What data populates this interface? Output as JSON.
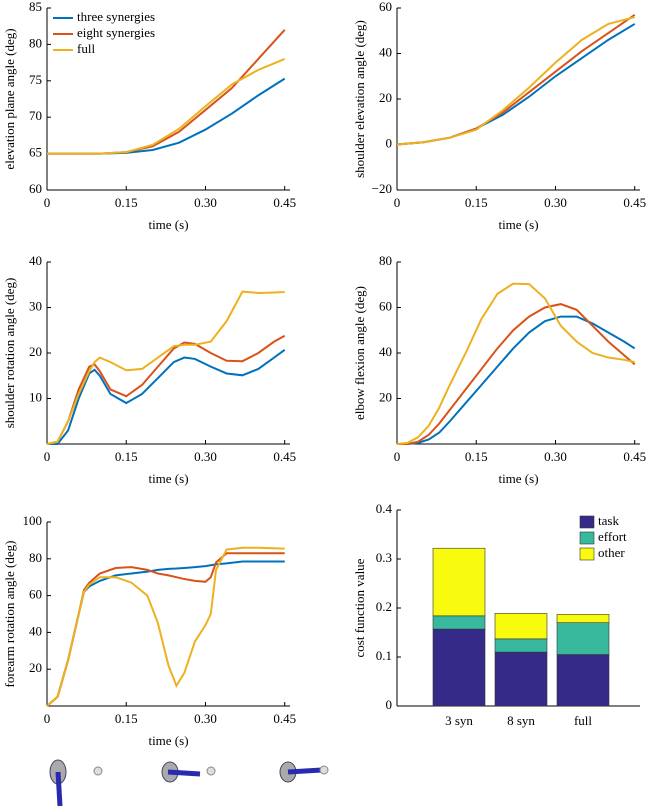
{
  "chart_data": [
    {
      "type": "line",
      "xlabel": "time (s)",
      "ylabel": "elevation plane angle (deg)",
      "x": [
        0,
        0.05,
        0.1,
        0.15,
        0.2,
        0.25,
        0.3,
        0.35,
        0.4,
        0.45
      ],
      "xlim": [
        0,
        0.46
      ],
      "ylim": [
        60,
        85
      ],
      "xticks": [
        0,
        0.15,
        {
          "value": 0.3,
          "label": "0.30"
        },
        0.45
      ],
      "yticks": [
        60,
        65,
        70,
        75,
        80,
        85
      ],
      "legend": "upper left",
      "series": [
        {
          "name": "three synergies",
          "color": "#0072bd",
          "values": [
            65,
            65,
            65,
            65.1,
            65.5,
            66.5,
            68.3,
            70.5,
            73,
            75.3
          ]
        },
        {
          "name": "eight synergies",
          "color": "#d95319",
          "values": [
            65,
            65,
            65,
            65.2,
            66,
            68,
            71,
            74,
            78,
            82
          ]
        },
        {
          "name": "full",
          "color": "#edb120",
          "values": [
            65,
            65,
            65,
            65.2,
            66.2,
            68.4,
            71.5,
            74.5,
            76.5,
            78
          ]
        }
      ]
    },
    {
      "type": "line",
      "xlabel": "time (s)",
      "ylabel": "shoulder elevation angle (deg)",
      "x": [
        0,
        0.05,
        0.1,
        0.15,
        0.2,
        0.25,
        0.3,
        0.35,
        0.4,
        0.45
      ],
      "xlim": [
        0,
        0.46
      ],
      "ylim": [
        -20,
        60
      ],
      "xticks": [
        0,
        0.15,
        {
          "value": 0.3,
          "label": "0.30"
        },
        0.45
      ],
      "yticks": [
        {
          "value": -20,
          "label": "−20"
        },
        0,
        20,
        40,
        60
      ],
      "series": [
        {
          "name": "three synergies",
          "color": "#0072bd",
          "values": [
            0,
            1,
            3,
            7,
            13,
            21,
            30,
            38,
            46,
            53
          ]
        },
        {
          "name": "eight synergies",
          "color": "#d95319",
          "values": [
            0,
            1,
            3,
            7,
            14,
            23,
            32,
            41,
            49,
            57
          ]
        },
        {
          "name": "full",
          "color": "#edb120",
          "values": [
            0,
            1,
            3,
            6.5,
            15,
            25,
            36,
            46,
            53,
            56
          ]
        }
      ]
    },
    {
      "type": "line",
      "xlabel": "time (s)",
      "ylabel": "shoulder rotation angle (deg)",
      "x": [
        0,
        0.02,
        0.04,
        0.06,
        0.08,
        0.09,
        0.1,
        0.12,
        0.15,
        0.18,
        0.21,
        0.24,
        0.26,
        0.28,
        0.31,
        0.34,
        0.37,
        0.4,
        0.43,
        0.45
      ],
      "xlim": [
        0,
        0.46
      ],
      "ylim": [
        0,
        40
      ],
      "xticks": [
        0,
        0.15,
        {
          "value": 0.3,
          "label": "0.30"
        },
        0.45
      ],
      "yticks": [
        10,
        20,
        30,
        40
      ],
      "series": [
        {
          "name": "three synergies",
          "color": "#0072bd",
          "values": [
            0,
            0,
            3,
            10,
            15.5,
            16.3,
            15,
            11,
            9,
            11,
            14.5,
            18,
            19,
            18.7,
            17,
            15.5,
            15.1,
            16.5,
            19,
            20.7
          ]
        },
        {
          "name": "eight synergies",
          "color": "#d95319",
          "values": [
            0,
            0.5,
            5,
            12,
            17,
            17.5,
            16,
            12,
            10.5,
            13,
            17,
            21,
            22.3,
            22,
            20,
            18.3,
            18.2,
            20,
            22.5,
            23.8
          ]
        },
        {
          "name": "full",
          "color": "#edb120",
          "values": [
            0,
            0.5,
            5,
            11,
            16,
            18,
            19,
            18,
            16.2,
            16.5,
            19,
            21.5,
            21.8,
            21.8,
            22.5,
            27,
            33.5,
            33.2,
            33.3,
            33.4
          ]
        }
      ]
    },
    {
      "type": "line",
      "xlabel": "time (s)",
      "ylabel": "elbow flexion angle (deg)",
      "x": [
        0,
        0.02,
        0.04,
        0.06,
        0.08,
        0.1,
        0.13,
        0.16,
        0.19,
        0.22,
        0.25,
        0.28,
        0.31,
        0.34,
        0.37,
        0.4,
        0.43,
        0.45
      ],
      "xlim": [
        0,
        0.46
      ],
      "ylim": [
        0,
        80
      ],
      "xticks": [
        0,
        0.15,
        {
          "value": 0.3,
          "label": "0.30"
        },
        0.45
      ],
      "yticks": [
        20,
        40,
        60,
        80
      ],
      "series": [
        {
          "name": "three synergies",
          "color": "#0072bd",
          "values": [
            0,
            0,
            0.5,
            2,
            5,
            10,
            18,
            26,
            34,
            42,
            49,
            54,
            56,
            56,
            53,
            49,
            45,
            42
          ]
        },
        {
          "name": "eight synergies",
          "color": "#d95319",
          "values": [
            0,
            0,
            1,
            4,
            9,
            15,
            24,
            33,
            42,
            50,
            56,
            60,
            61.5,
            59,
            52,
            45,
            39,
            35
          ]
        },
        {
          "name": "full",
          "color": "#edb120",
          "values": [
            0,
            0.5,
            3,
            8,
            16,
            26,
            40,
            55,
            66,
            70.5,
            70.3,
            64,
            52,
            45,
            40,
            38,
            37,
            36
          ]
        }
      ]
    },
    {
      "type": "line",
      "xlabel": "time (s)",
      "ylabel": "forearm rotation angle (deg)",
      "x": [
        0,
        0.02,
        0.04,
        0.06,
        0.07,
        0.08,
        0.1,
        0.13,
        0.16,
        0.19,
        0.21,
        0.23,
        0.245,
        0.26,
        0.28,
        0.3,
        0.31,
        0.32,
        0.34,
        0.37,
        0.4,
        0.45
      ],
      "xlim": [
        0,
        0.46
      ],
      "ylim": [
        0,
        100
      ],
      "xticks": [
        0,
        0.15,
        {
          "value": 0.3,
          "label": "0.30"
        },
        0.45
      ],
      "yticks": [
        20,
        40,
        60,
        80,
        100
      ],
      "series": [
        {
          "name": "three synergies",
          "color": "#0072bd",
          "values": [
            0,
            5,
            25,
            50,
            62,
            65,
            68,
            71,
            72,
            73,
            74,
            74.5,
            74.7,
            75,
            75.5,
            76,
            76.5,
            77,
            77.5,
            78.5,
            78.5,
            78.5
          ]
        },
        {
          "name": "eight synergies",
          "color": "#d95319",
          "values": [
            0,
            5,
            25,
            50,
            63,
            67,
            72,
            75,
            75.5,
            74,
            72,
            71,
            70,
            69,
            68,
            67.5,
            70,
            78,
            83,
            83,
            83,
            83
          ]
        },
        {
          "name": "full",
          "color": "#edb120",
          "values": [
            0,
            5,
            25,
            50,
            62,
            66,
            70,
            70,
            67,
            60,
            45,
            22,
            11,
            18,
            35,
            44,
            50,
            74,
            85,
            86,
            86,
            85.5
          ]
        }
      ]
    },
    {
      "type": "bar",
      "stacked": true,
      "ylabel": "cost function value",
      "categories": [
        "3 syn",
        "8 syn",
        "full"
      ],
      "ylim": [
        0,
        0.4
      ],
      "yticks": [
        0,
        0.1,
        0.2,
        0.3,
        0.4
      ],
      "legend": "upper right",
      "series": [
        {
          "name": "task",
          "color": "#352a87",
          "values": [
            0.157,
            0.11,
            0.105
          ]
        },
        {
          "name": "effort",
          "color": "#38b99e",
          "values": [
            0.027,
            0.027,
            0.065
          ]
        },
        {
          "name": "other",
          "color": "#f9fb0e",
          "values": [
            0.138,
            0.052,
            0.017
          ]
        }
      ]
    }
  ]
}
